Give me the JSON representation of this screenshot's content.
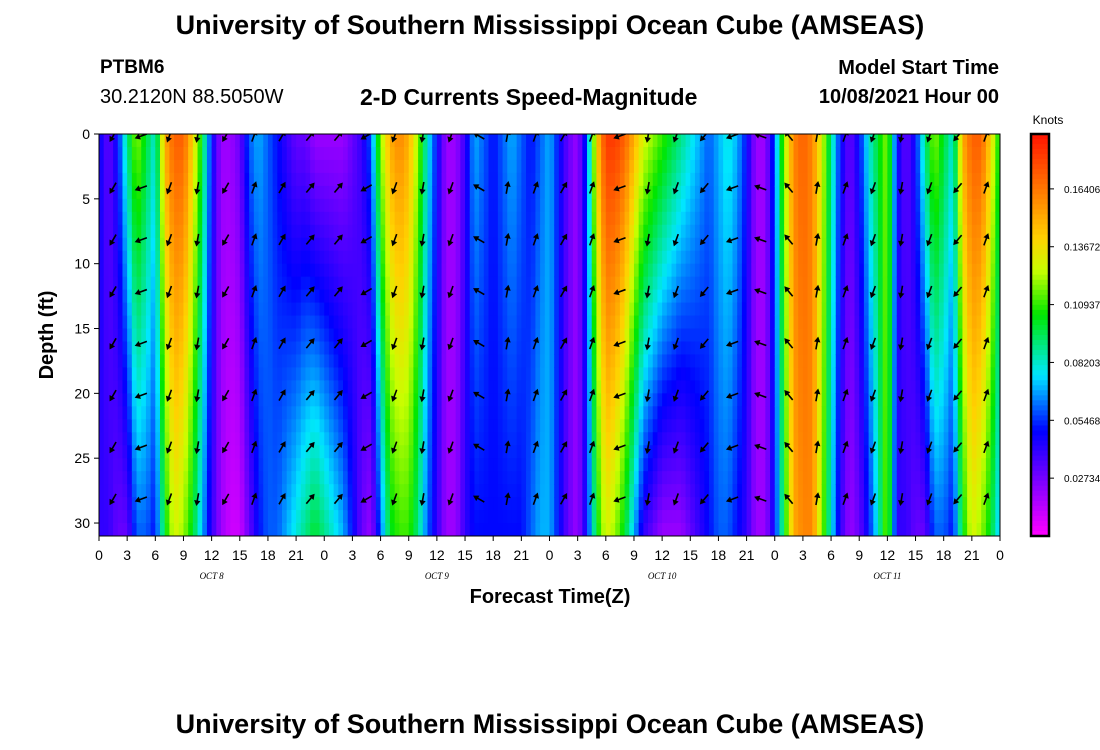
{
  "header": {
    "title": "University of Southern Mississippi Ocean Cube (AMSEAS)",
    "station": "PTBM6",
    "coordinates": "30.2120N  88.5050W",
    "subtitle": "2-D Currents Speed-Magnitude",
    "model_start_label": "Model Start Time",
    "model_start_value": "10/08/2021 Hour 00"
  },
  "footer": {
    "title": "University of Southern Mississippi Ocean Cube (AMSEAS)"
  },
  "chart_data": {
    "type": "heatmap",
    "title": "2-D Currents Speed-Magnitude",
    "xlabel": "Forecast Time(Z)",
    "ylabel": "Depth (ft)",
    "x_hours": [
      0,
      96
    ],
    "ylim": [
      0,
      31
    ],
    "y_ticks": [
      0,
      5,
      10,
      15,
      20,
      25,
      30
    ],
    "x_tick_labels": [
      "0",
      "3",
      "6",
      "9",
      "12",
      "15",
      "18",
      "21",
      "0",
      "3",
      "6",
      "9",
      "12",
      "15",
      "18",
      "21",
      "0",
      "3",
      "6",
      "9",
      "12",
      "15",
      "18",
      "21",
      "0",
      "3",
      "6",
      "9",
      "12",
      "15",
      "18",
      "21",
      "0"
    ],
    "date_labels": [
      {
        "hour": 12,
        "label": "OCT 8"
      },
      {
        "hour": 36,
        "label": "OCT 9"
      },
      {
        "hour": 60,
        "label": "OCT 10"
      },
      {
        "hour": 84,
        "label": "OCT 11"
      }
    ],
    "colorbar": {
      "units": "Knots",
      "range": [
        0,
        0.19
      ],
      "tick_labels": [
        "0.16406",
        "0.13672",
        "0.10937",
        "0.08203",
        "0.05468",
        "0.02734"
      ],
      "tick_values": [
        0.16406,
        0.13672,
        0.10937,
        0.08203,
        0.05468,
        0.02734
      ]
    },
    "speed_profile_by_hour": [
      {
        "hour": 0,
        "top": 0.05,
        "bottom": 0.04
      },
      {
        "hour": 1,
        "top": 0.03,
        "bottom": 0.04
      },
      {
        "hour": 2,
        "top": 0.05,
        "bottom": 0.03
      },
      {
        "hour": 3,
        "top": 0.09,
        "bottom": 0.03
      },
      {
        "hour": 4,
        "top": 0.12,
        "bottom": 0.06
      },
      {
        "hour": 5,
        "top": 0.1,
        "bottom": 0.06
      },
      {
        "hour": 6,
        "top": 0.08,
        "bottom": 0.05
      },
      {
        "hour": 7,
        "top": 0.15,
        "bottom": 0.1
      },
      {
        "hour": 8,
        "top": 0.17,
        "bottom": 0.13
      },
      {
        "hour": 9,
        "top": 0.17,
        "bottom": 0.12
      },
      {
        "hour": 10,
        "top": 0.14,
        "bottom": 0.1
      },
      {
        "hour": 11,
        "top": 0.1,
        "bottom": 0.07
      },
      {
        "hour": 12,
        "top": 0.05,
        "bottom": 0.04
      },
      {
        "hour": 13,
        "top": 0.02,
        "bottom": 0.02
      },
      {
        "hour": 14,
        "top": 0.02,
        "bottom": 0.01
      },
      {
        "hour": 15,
        "top": 0.03,
        "bottom": 0.01
      },
      {
        "hour": 16,
        "top": 0.06,
        "bottom": 0.03
      },
      {
        "hour": 17,
        "top": 0.07,
        "bottom": 0.05
      },
      {
        "hour": 18,
        "top": 0.06,
        "bottom": 0.06
      },
      {
        "hour": 19,
        "top": 0.05,
        "bottom": 0.06
      },
      {
        "hour": 20,
        "top": 0.04,
        "bottom": 0.07
      },
      {
        "hour": 21,
        "top": 0.03,
        "bottom": 0.08
      },
      {
        "hour": 22,
        "top": 0.03,
        "bottom": 0.09
      },
      {
        "hour": 23,
        "top": 0.02,
        "bottom": 0.1
      },
      {
        "hour": 24,
        "top": 0.02,
        "bottom": 0.09
      },
      {
        "hour": 25,
        "top": 0.02,
        "bottom": 0.08
      },
      {
        "hour": 26,
        "top": 0.02,
        "bottom": 0.07
      },
      {
        "hour": 27,
        "top": 0.03,
        "bottom": 0.05
      },
      {
        "hour": 28,
        "top": 0.04,
        "bottom": 0.03
      },
      {
        "hour": 29,
        "top": 0.06,
        "bottom": 0.02
      },
      {
        "hour": 30,
        "top": 0.12,
        "bottom": 0.06
      },
      {
        "hour": 31,
        "top": 0.15,
        "bottom": 0.1
      },
      {
        "hour": 32,
        "top": 0.16,
        "bottom": 0.11
      },
      {
        "hour": 33,
        "top": 0.15,
        "bottom": 0.11
      },
      {
        "hour": 34,
        "top": 0.12,
        "bottom": 0.09
      },
      {
        "hour": 35,
        "top": 0.08,
        "bottom": 0.06
      },
      {
        "hour": 36,
        "top": 0.05,
        "bottom": 0.04
      },
      {
        "hour": 37,
        "top": 0.02,
        "bottom": 0.02
      },
      {
        "hour": 38,
        "top": 0.02,
        "bottom": 0.02
      },
      {
        "hour": 39,
        "top": 0.04,
        "bottom": 0.04
      },
      {
        "hour": 40,
        "top": 0.07,
        "bottom": 0.05
      },
      {
        "hour": 41,
        "top": 0.06,
        "bottom": 0.05
      },
      {
        "hour": 42,
        "top": 0.05,
        "bottom": 0.05
      },
      {
        "hour": 43,
        "top": 0.06,
        "bottom": 0.05
      },
      {
        "hour": 44,
        "top": 0.07,
        "bottom": 0.05
      },
      {
        "hour": 45,
        "top": 0.06,
        "bottom": 0.05
      },
      {
        "hour": 46,
        "top": 0.05,
        "bottom": 0.06
      },
      {
        "hour": 47,
        "top": 0.06,
        "bottom": 0.07
      },
      {
        "hour": 48,
        "top": 0.07,
        "bottom": 0.07
      },
      {
        "hour": 49,
        "top": 0.05,
        "bottom": 0.05
      },
      {
        "hour": 50,
        "top": 0.03,
        "bottom": 0.03
      },
      {
        "hour": 51,
        "top": 0.02,
        "bottom": 0.02
      },
      {
        "hour": 52,
        "top": 0.06,
        "bottom": 0.05
      },
      {
        "hour": 53,
        "top": 0.14,
        "bottom": 0.1
      },
      {
        "hour": 54,
        "top": 0.18,
        "bottom": 0.13
      },
      {
        "hour": 55,
        "top": 0.18,
        "bottom": 0.12
      },
      {
        "hour": 56,
        "top": 0.17,
        "bottom": 0.1
      },
      {
        "hour": 57,
        "top": 0.15,
        "bottom": 0.07
      },
      {
        "hour": 58,
        "top": 0.13,
        "bottom": 0.04
      },
      {
        "hour": 59,
        "top": 0.12,
        "bottom": 0.03
      },
      {
        "hour": 60,
        "top": 0.11,
        "bottom": 0.02
      },
      {
        "hour": 61,
        "top": 0.1,
        "bottom": 0.02
      },
      {
        "hour": 62,
        "top": 0.09,
        "bottom": 0.02
      },
      {
        "hour": 63,
        "top": 0.08,
        "bottom": 0.03
      },
      {
        "hour": 64,
        "top": 0.07,
        "bottom": 0.04
      },
      {
        "hour": 65,
        "top": 0.06,
        "bottom": 0.05
      },
      {
        "hour": 66,
        "top": 0.07,
        "bottom": 0.06
      },
      {
        "hour": 67,
        "top": 0.08,
        "bottom": 0.06
      },
      {
        "hour": 68,
        "top": 0.07,
        "bottom": 0.05
      },
      {
        "hour": 69,
        "top": 0.05,
        "bottom": 0.04
      },
      {
        "hour": 70,
        "top": 0.02,
        "bottom": 0.02
      },
      {
        "hour": 71,
        "top": 0.02,
        "bottom": 0.02
      },
      {
        "hour": 72,
        "top": 0.06,
        "bottom": 0.05
      },
      {
        "hour": 73,
        "top": 0.12,
        "bottom": 0.1
      },
      {
        "hour": 74,
        "top": 0.16,
        "bottom": 0.15
      },
      {
        "hour": 75,
        "top": 0.17,
        "bottom": 0.16
      },
      {
        "hour": 76,
        "top": 0.16,
        "bottom": 0.16
      },
      {
        "hour": 77,
        "top": 0.13,
        "bottom": 0.12
      },
      {
        "hour": 78,
        "top": 0.09,
        "bottom": 0.08
      },
      {
        "hour": 79,
        "top": 0.05,
        "bottom": 0.04
      },
      {
        "hour": 80,
        "top": 0.03,
        "bottom": 0.02
      },
      {
        "hour": 81,
        "top": 0.05,
        "bottom": 0.03
      },
      {
        "hour": 82,
        "top": 0.08,
        "bottom": 0.05
      },
      {
        "hour": 83,
        "top": 0.1,
        "bottom": 0.08
      },
      {
        "hour": 84,
        "top": 0.12,
        "bottom": 0.12
      }
    ],
    "vectors": {
      "depths_ft": [
        0,
        4,
        8,
        12,
        16,
        20,
        24,
        28
      ],
      "hours": [
        1.5,
        4.5,
        7.5,
        10.5,
        13.5,
        16.5,
        19.5,
        22.5,
        25.5,
        28.5,
        31.5,
        34.5,
        37.5,
        40.5,
        43.5,
        46.5,
        49.5,
        52.5,
        55.5,
        58.5,
        61.5,
        64.5,
        67.5,
        70.5,
        73.5,
        76.5,
        79.5,
        82.5,
        85.5,
        88.5,
        91.5,
        94.5
      ],
      "direction_deg_by_hour": [
        210,
        250,
        200,
        190,
        210,
        20,
        30,
        40,
        40,
        240,
        200,
        190,
        200,
        300,
        10,
        20,
        30,
        20,
        250,
        190,
        200,
        220,
        250,
        290,
        320,
        10,
        20,
        200,
        190,
        200,
        220,
        20
      ]
    }
  }
}
